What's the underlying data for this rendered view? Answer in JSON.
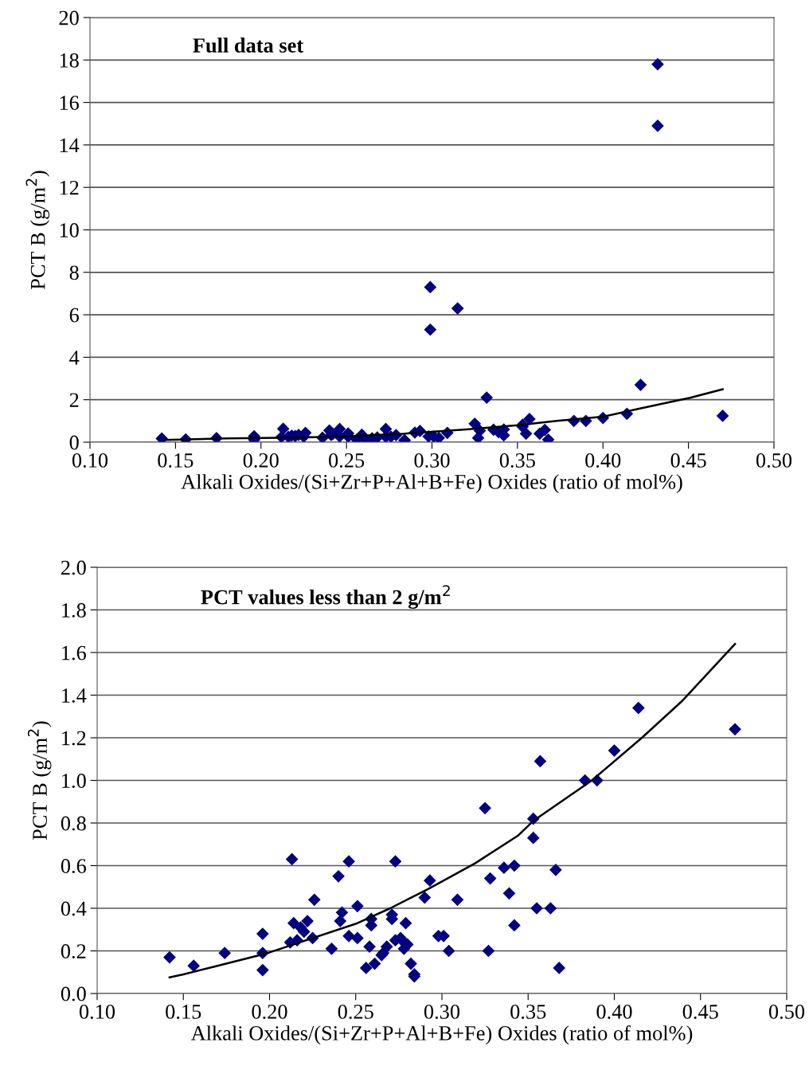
{
  "chart_data": [
    {
      "type": "scatter",
      "annotations": [
        "Full data set"
      ],
      "xlabel": "Alkali Oxides/(Si+Zr+P+Al+B+Fe) Oxides (ratio of mol%)",
      "ylabel": "PCT B (g/m$^{2}$)",
      "xlim": [
        0.1,
        0.5
      ],
      "xticks": [
        {
          "value": 0.1,
          "label": "0.10"
        },
        {
          "value": 0.15,
          "label": "0.15"
        },
        {
          "value": 0.2,
          "label": "0.20"
        },
        {
          "value": 0.25,
          "label": "0.25"
        },
        {
          "value": 0.3,
          "label": "0.30"
        },
        {
          "value": 0.35,
          "label": "0.35"
        },
        {
          "value": 0.4,
          "label": "0.40"
        },
        {
          "value": 0.45,
          "label": "0.45"
        },
        {
          "value": 0.5,
          "label": "0.50"
        }
      ],
      "ylim": [
        0,
        20
      ],
      "yticks": [
        0,
        2,
        4,
        6,
        8,
        10,
        12,
        14,
        16,
        18,
        20
      ],
      "grid": "y",
      "legend": false,
      "marker": "diamond",
      "series": [
        {
          "color": "#000080",
          "x": [
            0.142,
            0.156,
            0.174,
            0.196,
            0.196,
            0.212,
            0.213,
            0.216,
            0.218,
            0.22,
            0.222,
            0.225,
            0.226,
            0.236,
            0.24,
            0.241,
            0.242,
            0.246,
            0.246,
            0.251,
            0.251,
            0.256,
            0.259,
            0.261,
            0.265,
            0.268,
            0.273,
            0.273,
            0.276,
            0.279,
            0.284,
            0.284,
            0.29,
            0.293,
            0.298,
            0.301,
            0.304,
            0.309,
            0.325,
            0.327,
            0.328,
            0.336,
            0.339,
            0.342,
            0.342,
            0.353,
            0.353,
            0.355,
            0.357,
            0.363,
            0.366,
            0.368,
            0.383,
            0.39,
            0.4,
            0.414,
            0.47,
            0.299,
            0.299,
            0.315,
            0.332,
            0.422,
            0.432,
            0.432
          ],
          "values": [
            0.17,
            0.13,
            0.19,
            0.28,
            0.11,
            0.24,
            0.63,
            0.25,
            0.31,
            0.29,
            0.34,
            0.26,
            0.44,
            0.21,
            0.55,
            0.34,
            0.38,
            0.62,
            0.27,
            0.41,
            0.26,
            0.12,
            0.35,
            0.14,
            0.18,
            0.22,
            0.62,
            0.25,
            0.26,
            0.33,
            0.09,
            0.08,
            0.45,
            0.53,
            0.27,
            0.27,
            0.2,
            0.44,
            0.87,
            0.2,
            0.54,
            0.59,
            0.47,
            0.6,
            0.32,
            0.82,
            0.73,
            0.4,
            1.09,
            0.4,
            0.58,
            0.12,
            1.0,
            1.0,
            1.14,
            1.34,
            1.24,
            7.3,
            5.3,
            6.3,
            2.1,
            2.7,
            17.8,
            14.9
          ]
        },
        {
          "type": "line",
          "color": "#000000",
          "marker": "none",
          "x": [
            0.143,
            0.18,
            0.22,
            0.25,
            0.28,
            0.32,
            0.35,
            0.373,
            0.4,
            0.42,
            0.451,
            0.47
          ],
          "values": [
            0.1,
            0.18,
            0.22,
            0.27,
            0.38,
            0.6,
            0.8,
            1.0,
            1.2,
            1.56,
            2.09,
            2.49
          ]
        }
      ]
    },
    {
      "type": "scatter",
      "annotations": [
        "PCT values less than 2 g/m$^{2}$"
      ],
      "xlabel": "Alkali Oxides/(Si+Zr+P+Al+B+Fe) Oxides (ratio of mol%)",
      "ylabel": "PCT B (g/m$^{2}$)",
      "xlim": [
        0.1,
        0.5
      ],
      "xticks": [
        {
          "value": 0.1,
          "label": "0.10"
        },
        {
          "value": 0.15,
          "label": "0.15"
        },
        {
          "value": 0.2,
          "label": "0.20"
        },
        {
          "value": 0.25,
          "label": "0.25"
        },
        {
          "value": 0.3,
          "label": "0.30"
        },
        {
          "value": 0.35,
          "label": "0.35"
        },
        {
          "value": 0.4,
          "label": "0.40"
        },
        {
          "value": 0.45,
          "label": "0.45"
        },
        {
          "value": 0.5,
          "label": "0.50"
        }
      ],
      "ylim": [
        0,
        2
      ],
      "yticks": [
        {
          "value": 0,
          "label": "0.0"
        },
        0.2,
        0.4,
        0.6,
        0.8,
        {
          "value": 1,
          "label": "1.0"
        },
        1.2,
        1.4,
        1.6,
        1.8,
        {
          "value": 2,
          "label": "2.0"
        }
      ],
      "grid": "y",
      "legend": false,
      "marker": "diamond",
      "series": [
        {
          "color": "#000080",
          "x": [
            0.142,
            0.156,
            0.174,
            0.196,
            0.196,
            0.196,
            0.212,
            0.213,
            0.214,
            0.216,
            0.218,
            0.22,
            0.222,
            0.225,
            0.226,
            0.236,
            0.24,
            0.241,
            0.242,
            0.246,
            0.246,
            0.251,
            0.251,
            0.256,
            0.258,
            0.259,
            0.259,
            0.261,
            0.265,
            0.266,
            0.268,
            0.271,
            0.271,
            0.273,
            0.273,
            0.276,
            0.278,
            0.278,
            0.279,
            0.28,
            0.282,
            0.284,
            0.284,
            0.29,
            0.293,
            0.298,
            0.301,
            0.304,
            0.309,
            0.325,
            0.327,
            0.328,
            0.336,
            0.339,
            0.342,
            0.342,
            0.353,
            0.353,
            0.355,
            0.357,
            0.363,
            0.366,
            0.368,
            0.383,
            0.39,
            0.4,
            0.414,
            0.47
          ],
          "values": [
            0.17,
            0.13,
            0.19,
            0.28,
            0.19,
            0.11,
            0.24,
            0.63,
            0.33,
            0.25,
            0.31,
            0.29,
            0.34,
            0.26,
            0.44,
            0.21,
            0.55,
            0.34,
            0.38,
            0.62,
            0.27,
            0.41,
            0.26,
            0.12,
            0.22,
            0.35,
            0.32,
            0.14,
            0.18,
            0.19,
            0.22,
            0.37,
            0.35,
            0.62,
            0.25,
            0.26,
            0.24,
            0.21,
            0.33,
            0.23,
            0.14,
            0.09,
            0.08,
            0.45,
            0.53,
            0.27,
            0.27,
            0.2,
            0.44,
            0.87,
            0.2,
            0.54,
            0.59,
            0.47,
            0.6,
            0.32,
            0.82,
            0.73,
            0.4,
            1.09,
            0.4,
            0.58,
            0.12,
            1.0,
            1.0,
            1.14,
            1.34,
            1.24
          ]
        },
        {
          "type": "line",
          "color": "#000000",
          "marker": "none",
          "x": [
            0.142,
            0.15,
            0.168,
            0.199,
            0.251,
            0.27,
            0.292,
            0.319,
            0.344,
            0.353,
            0.387,
            0.416,
            0.439,
            0.47
          ],
          "values": [
            0.076,
            0.09,
            0.126,
            0.19,
            0.33,
            0.4,
            0.49,
            0.61,
            0.74,
            0.81,
            1.0,
            1.2,
            1.37,
            1.64
          ]
        }
      ]
    }
  ]
}
